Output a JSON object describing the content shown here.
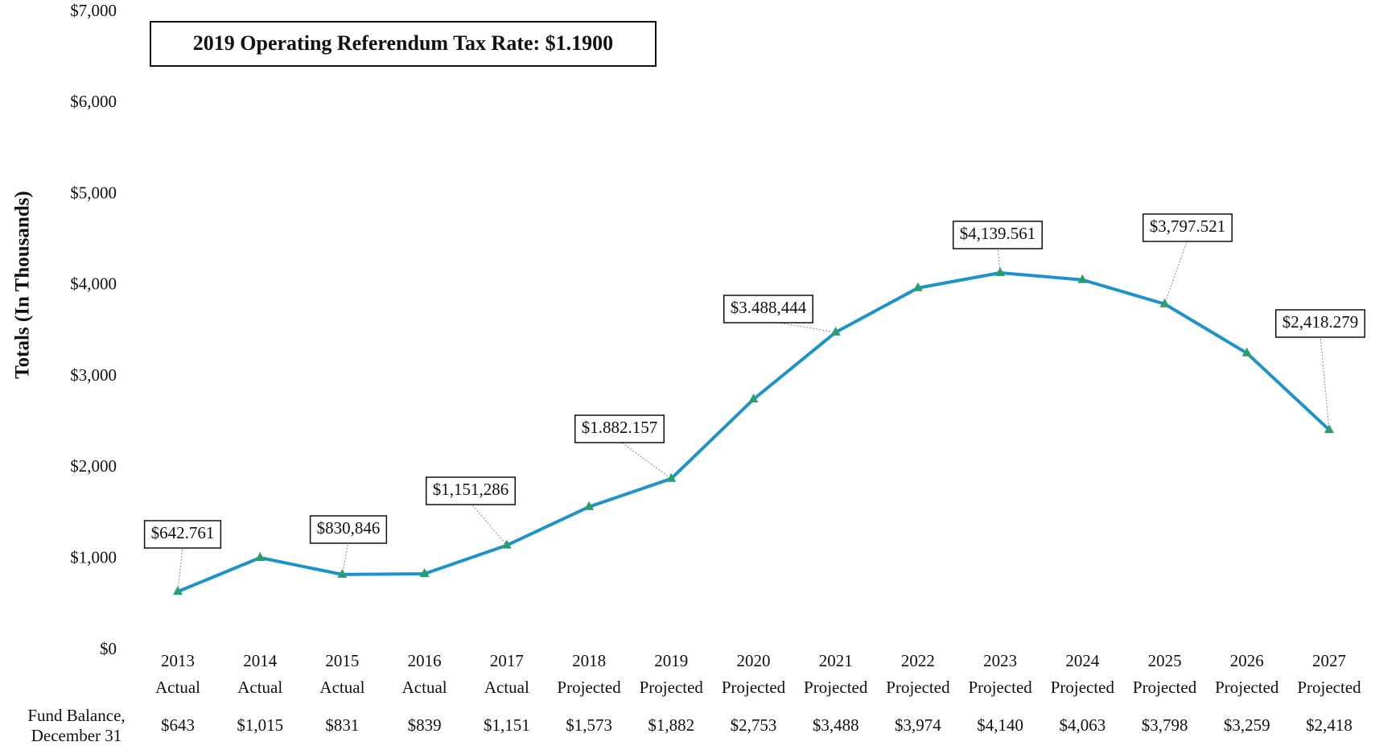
{
  "chart_data": {
    "type": "line",
    "title": "2019 Operating Referendum Tax Rate: $1.1900",
    "y_label": "Totals (In Thousands)",
    "categories": [
      "2013",
      "2014",
      "2015",
      "2016",
      "2017",
      "2018",
      "2019",
      "2020",
      "2021",
      "2022",
      "2023",
      "2024",
      "2025",
      "2026",
      "2027"
    ],
    "category_status": [
      "Actual",
      "Actual",
      "Actual",
      "Actual",
      "Actual",
      "Projected",
      "Projected",
      "Projected",
      "Projected",
      "Projected",
      "Projected",
      "Projected",
      "Projected",
      "Projected",
      "Projected"
    ],
    "series": [
      {
        "name": "Fund Balance",
        "color": "#1f93c9",
        "marker_color": "#2a9d6e",
        "values": [
          643,
          1015,
          831,
          839,
          1151,
          1573,
          1882,
          2753,
          3488,
          3974,
          4140,
          4063,
          3798,
          3259,
          2418
        ],
        "value_labels": [
          "$643",
          "$1,015",
          "$831",
          "$839",
          "$1,151",
          "$1,573",
          "$1,882",
          "$2,753",
          "$3,488",
          "$3,974",
          "$4,140",
          "$4,063",
          "$3,798",
          "$3,259",
          "$2,418"
        ],
        "callouts": [
          {
            "value": 642.761,
            "label": "$642.761"
          },
          null,
          {
            "value": 830.846,
            "label": "$830,846"
          },
          null,
          {
            "value": 1151.286,
            "label": "$1,151,286"
          },
          null,
          {
            "value": 1882.157,
            "label": "$1.882.157"
          },
          null,
          {
            "value": 3488.444,
            "label": "$3.488,444"
          },
          null,
          {
            "value": 4139.561,
            "label": "$4,139.561"
          },
          null,
          {
            "value": 3797.521,
            "label": "$3,797.521"
          },
          null,
          {
            "value": 2418.279,
            "label": "$2,418.279"
          }
        ]
      }
    ],
    "table_row_label": [
      "Fund Balance,",
      "December 31"
    ],
    "ylim": [
      0,
      7000
    ],
    "yticks": [
      {
        "value": 0,
        "label": "$0"
      },
      {
        "value": 1000,
        "label": "$1,000"
      },
      {
        "value": 2000,
        "label": "$2,000"
      },
      {
        "value": 3000,
        "label": "$3,000"
      },
      {
        "value": 4000,
        "label": "$4,000"
      },
      {
        "value": 5000,
        "label": "$5,000"
      },
      {
        "value": 6000,
        "label": "$6,000"
      },
      {
        "value": 7000,
        "label": "$7,000"
      }
    ],
    "grid": false
  }
}
